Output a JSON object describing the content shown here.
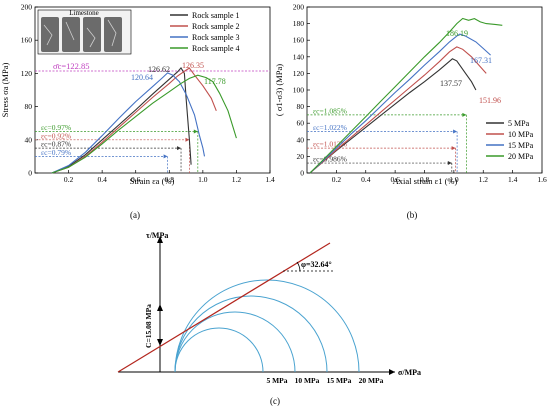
{
  "chart_data": [
    {
      "panel": "(a)",
      "type": "line",
      "xlabel": "Strain εa (%)",
      "ylabel": "Stress σa (MPa)",
      "xlim": [
        0,
        1.4
      ],
      "ylim": [
        0,
        200
      ],
      "xticks": [
        "0.2",
        "0.4",
        "0.6",
        "0.8",
        "1.0",
        "1.2",
        "1.4"
      ],
      "yticks": [
        "0",
        "40",
        "80",
        "120",
        "160",
        "200"
      ],
      "inset_label": "Limestone",
      "series": [
        {
          "name": "Rock sample 1",
          "color": "#333333",
          "points": [
            [
              0.1,
              0
            ],
            [
              0.2,
              8
            ],
            [
              0.3,
              22
            ],
            [
              0.4,
              40
            ],
            [
              0.5,
              58
            ],
            [
              0.6,
              76
            ],
            [
              0.7,
              95
            ],
            [
              0.8,
              113
            ],
            [
              0.85,
              122
            ],
            [
              0.87,
              126.62
            ],
            [
              0.89,
              120
            ],
            [
              0.9,
              90
            ],
            [
              0.92,
              40
            ],
            [
              0.93,
              10
            ]
          ]
        },
        {
          "name": "Rock sample 2",
          "color": "#c0504d",
          "points": [
            [
              0.1,
              0
            ],
            [
              0.2,
              7
            ],
            [
              0.3,
              20
            ],
            [
              0.4,
              37
            ],
            [
              0.5,
              55
            ],
            [
              0.6,
              73
            ],
            [
              0.7,
              91
            ],
            [
              0.8,
              108
            ],
            [
              0.85,
              117
            ],
            [
              0.9,
              124
            ],
            [
              0.92,
              126.35
            ],
            [
              0.95,
              118
            ],
            [
              1.0,
              105
            ],
            [
              1.05,
              90
            ],
            [
              1.08,
              75
            ]
          ]
        },
        {
          "name": "Rock sample 3",
          "color": "#4472c4",
          "points": [
            [
              0.1,
              0
            ],
            [
              0.2,
              9
            ],
            [
              0.3,
              25
            ],
            [
              0.4,
              45
            ],
            [
              0.5,
              66
            ],
            [
              0.6,
              86
            ],
            [
              0.7,
              104
            ],
            [
              0.76,
              115
            ],
            [
              0.79,
              120.64
            ],
            [
              0.82,
              118
            ],
            [
              0.86,
              110
            ],
            [
              0.9,
              95
            ],
            [
              0.95,
              70
            ],
            [
              0.98,
              45
            ],
            [
              1.0,
              30
            ],
            [
              1.01,
              20
            ]
          ]
        },
        {
          "name": "Rock sample 4",
          "color": "#3a9a2a",
          "points": [
            [
              0.1,
              0
            ],
            [
              0.2,
              7
            ],
            [
              0.3,
              19
            ],
            [
              0.4,
              35
            ],
            [
              0.5,
              52
            ],
            [
              0.6,
              68
            ],
            [
              0.7,
              84
            ],
            [
              0.8,
              98
            ],
            [
              0.87,
              108
            ],
            [
              0.92,
              114
            ],
            [
              0.97,
              117.78
            ],
            [
              1.02,
              115
            ],
            [
              1.06,
              110
            ],
            [
              1.1,
              96
            ],
            [
              1.15,
              75
            ],
            [
              1.2,
              42
            ]
          ]
        }
      ],
      "peak_labels": [
        "126.62",
        "126.35",
        "120.64",
        "117.78"
      ],
      "mean_line": {
        "label": "σ̄c=122.85",
        "value": 122.85
      },
      "strain_annotations": [
        {
          "label": "εc=0.97%",
          "value": 0.97,
          "stress": 50,
          "color": "#3a9a2a"
        },
        {
          "label": "εc=0.92%",
          "value": 0.92,
          "stress": 40,
          "color": "#c0504d"
        },
        {
          "label": "εc=0.87%",
          "value": 0.87,
          "stress": 30,
          "color": "#333333"
        },
        {
          "label": "εc=0.79%",
          "value": 0.79,
          "stress": 20,
          "color": "#4472c4"
        }
      ],
      "caption": "(a)"
    },
    {
      "panel": "(b)",
      "type": "line",
      "xlabel": "Axial strain ε1 (%)",
      "ylabel": "( σ1-σ3) (MPa)",
      "xlim": [
        0,
        1.6
      ],
      "ylim": [
        0,
        200
      ],
      "xticks": [
        "0.2",
        "0.4",
        "0.6",
        "0.8",
        "1.0",
        "1.2",
        "1.4",
        "1.6"
      ],
      "yticks": [
        "0",
        "20",
        "40",
        "60",
        "80",
        "100",
        "120",
        "140",
        "160",
        "180",
        "200"
      ],
      "series": [
        {
          "name": "5 MPa",
          "color": "#333333",
          "points": [
            [
              0.02,
              0
            ],
            [
              0.1,
              12
            ],
            [
              0.2,
              27
            ],
            [
              0.3,
              41
            ],
            [
              0.4,
              55
            ],
            [
              0.5,
              69
            ],
            [
              0.6,
              83
            ],
            [
              0.7,
              97
            ],
            [
              0.8,
              110
            ],
            [
              0.9,
              124
            ],
            [
              0.96,
              133
            ],
            [
              0.99,
              137.57
            ],
            [
              1.02,
              135
            ],
            [
              1.08,
              120
            ],
            [
              1.12,
              110
            ],
            [
              1.15,
              100
            ]
          ]
        },
        {
          "name": "10 MPa",
          "color": "#c0504d",
          "points": [
            [
              0.02,
              0
            ],
            [
              0.1,
              12
            ],
            [
              0.2,
              28
            ],
            [
              0.3,
              43
            ],
            [
              0.4,
              58
            ],
            [
              0.5,
              73
            ],
            [
              0.6,
              88
            ],
            [
              0.7,
              103
            ],
            [
              0.8,
              118
            ],
            [
              0.9,
              134
            ],
            [
              0.97,
              146
            ],
            [
              1.02,
              151.96
            ],
            [
              1.06,
              149
            ],
            [
              1.12,
              140
            ],
            [
              1.18,
              128
            ],
            [
              1.22,
              120
            ]
          ]
        },
        {
          "name": "15 MPa",
          "color": "#4472c4",
          "points": [
            [
              0.02,
              0
            ],
            [
              0.1,
              13
            ],
            [
              0.2,
              30
            ],
            [
              0.3,
              47
            ],
            [
              0.4,
              63
            ],
            [
              0.5,
              80
            ],
            [
              0.6,
              97
            ],
            [
              0.7,
              113
            ],
            [
              0.8,
              130
            ],
            [
              0.9,
              146
            ],
            [
              0.97,
              158
            ],
            [
              1.02,
              165
            ],
            [
              1.04,
              167.31
            ],
            [
              1.08,
              165
            ],
            [
              1.15,
              158
            ],
            [
              1.2,
              150
            ],
            [
              1.25,
              142
            ]
          ]
        },
        {
          "name": "20 MPa",
          "color": "#3a9a2a",
          "points": [
            [
              0.02,
              0
            ],
            [
              0.1,
              14
            ],
            [
              0.2,
              32
            ],
            [
              0.3,
              50
            ],
            [
              0.4,
              68
            ],
            [
              0.5,
              86
            ],
            [
              0.6,
              104
            ],
            [
              0.7,
              122
            ],
            [
              0.8,
              140
            ],
            [
              0.9,
              157
            ],
            [
              0.97,
              170
            ],
            [
              1.02,
              180
            ],
            [
              1.06,
              186.19
            ],
            [
              1.1,
              184
            ],
            [
              1.14,
              186
            ],
            [
              1.18,
              182
            ],
            [
              1.22,
              180
            ],
            [
              1.28,
              179
            ],
            [
              1.33,
              178
            ]
          ]
        }
      ],
      "peak_labels": [
        "137.57",
        "151.96",
        "167.31",
        "186.19"
      ],
      "strain_annotations": [
        {
          "label": "εc=1.085%",
          "value": 1.085,
          "stress": 70,
          "color": "#3a9a2a"
        },
        {
          "label": "εc=1.022%",
          "value": 1.022,
          "stress": 50,
          "color": "#4472c4"
        },
        {
          "label": "εc=1.012%",
          "value": 1.012,
          "stress": 30,
          "color": "#c0504d"
        },
        {
          "label": "εc=0.986%",
          "value": 0.986,
          "stress": 12,
          "color": "#333333"
        }
      ],
      "caption": "(b)"
    },
    {
      "panel": "(c)",
      "type": "diagram",
      "xlabel": "σ/MPa",
      "ylabel": "τ/MPa",
      "cohesion_label": "C=15.08 MPa",
      "angle_label": "φ=32.64°",
      "circle_labels": [
        "5 MPa",
        "10 MPa",
        "15 MPa",
        "20 MPa"
      ],
      "caption": "(c)"
    }
  ]
}
